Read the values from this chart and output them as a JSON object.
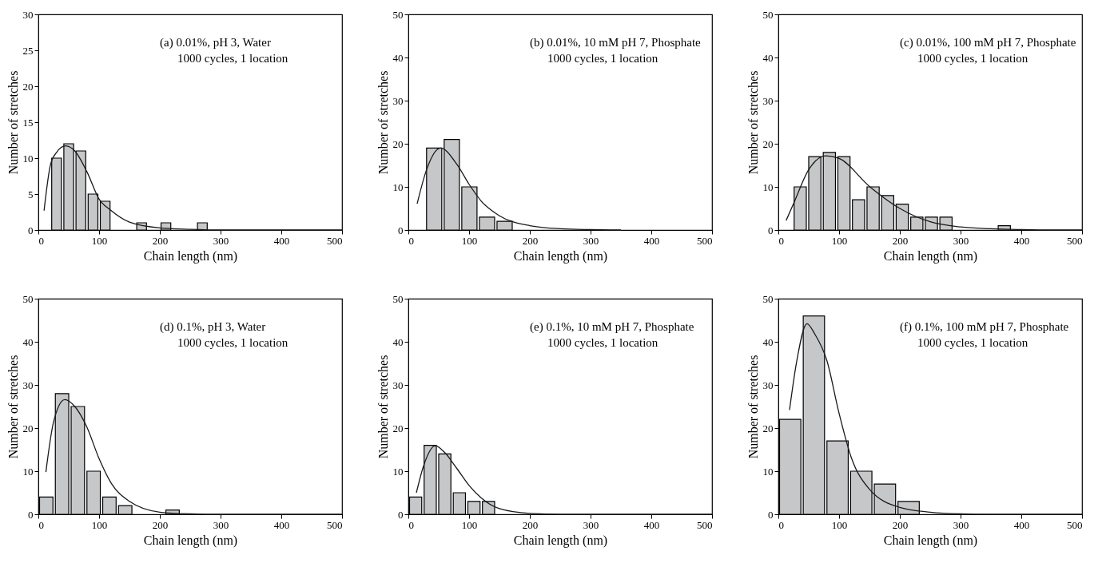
{
  "chart_data": [
    {
      "type": "histogram",
      "bins": [
        20,
        40,
        60,
        80,
        100,
        120,
        140,
        160,
        180,
        200,
        220,
        240,
        260,
        280
      ],
      "values": [
        10,
        12,
        11,
        5,
        4,
        0,
        0,
        1,
        0,
        1,
        0,
        0,
        1
      ],
      "color": "#c6c7c9",
      "series": [
        {
          "type": "line",
          "color": "#1a1a1a",
          "x": [
            9.4,
            20,
            30,
            45,
            60,
            80,
            100,
            120,
            150,
            200,
            250,
            300,
            400,
            500
          ],
          "values": [
            2.7,
            9.1,
            10.8,
            11.7,
            11.0,
            8.1,
            4.3,
            2.7,
            1.1,
            0.3,
            0.1,
            0,
            0,
            0
          ]
        }
      ],
      "xlabel": "Chain length (nm)",
      "ylabel": "Number of stretches",
      "xlim": [
        0,
        500
      ],
      "xticks": [
        0,
        100,
        200,
        300,
        400,
        500
      ],
      "ylim": [
        0,
        30
      ],
      "yticks": [
        0,
        5,
        10,
        15,
        20,
        25,
        30
      ],
      "grid": false,
      "annotations": [
        "(a)   0.01%, pH 3, Water",
        "1000 cycles, 1 location"
      ]
    },
    {
      "type": "histogram",
      "bins": [
        28,
        57,
        86,
        115,
        144,
        173
      ],
      "values": [
        19,
        21,
        10,
        3,
        2
      ],
      "color": "#c6c7c9",
      "series": [
        {
          "type": "line",
          "color": "#1a1a1a",
          "x": [
            14.5,
            30,
            53,
            80,
            100,
            120,
            150,
            200,
            250,
            300,
            350
          ],
          "values": [
            6.1,
            14,
            19.0,
            15.2,
            10.6,
            6.7,
            3.3,
            1.0,
            0.3,
            0.1,
            0
          ]
        }
      ],
      "xlabel": "Chain length (nm)",
      "ylabel": "Number of stretches",
      "xlim": [
        0,
        500
      ],
      "xticks": [
        0,
        100,
        200,
        300,
        400,
        500
      ],
      "ylim": [
        0,
        50
      ],
      "yticks": [
        0,
        10,
        20,
        30,
        40,
        50
      ],
      "grid": false,
      "annotations": [
        "(b)   0.01%, 10 mM pH 7, Phosphate",
        "1000 cycles, 1 location"
      ]
    },
    {
      "type": "histogram",
      "bins": [
        24,
        48,
        72,
        96,
        120,
        144,
        168,
        192,
        216,
        240,
        264,
        288,
        312,
        336,
        360,
        384
      ],
      "values": [
        10,
        17,
        18,
        17,
        7,
        10,
        8,
        6,
        3,
        3,
        3,
        0,
        0,
        0,
        1
      ],
      "color": "#c6c7c9",
      "series": [
        {
          "type": "line",
          "color": "#1a1a1a",
          "x": [
            12.8,
            25,
            50,
            77.6,
            100,
            150,
            200,
            250,
            300,
            350,
            400,
            450,
            500
          ],
          "values": [
            2.2,
            6.1,
            14,
            17.2,
            16.6,
            10.1,
            5.0,
            1.9,
            0.7,
            0.3,
            0.1,
            0,
            0
          ]
        }
      ],
      "xlabel": "Chain length (nm)",
      "ylabel": "Number of stretches",
      "xlim": [
        0,
        500
      ],
      "xticks": [
        0,
        100,
        200,
        300,
        400,
        500
      ],
      "ylim": [
        0,
        50
      ],
      "yticks": [
        0,
        10,
        20,
        30,
        40,
        50
      ],
      "grid": false,
      "annotations": [
        "(c)   0.01%, 100 mM pH 7, Phosphate",
        "1000 cycles, 1 location"
      ]
    },
    {
      "type": "histogram",
      "bins": [
        0,
        26,
        52,
        78,
        104,
        130,
        156,
        182,
        208,
        234
      ],
      "values": [
        4,
        28,
        25,
        10,
        4,
        2,
        0,
        0,
        1
      ],
      "color": "#c6c7c9",
      "series": [
        {
          "type": "line",
          "color": "#1a1a1a",
          "x": [
            12.4,
            25,
            43.5,
            60,
            80,
            100,
            120,
            150,
            200,
            250,
            300,
            500
          ],
          "values": [
            9.8,
            21.4,
            26.6,
            25.0,
            20.2,
            12.9,
            7.2,
            3.0,
            0.5,
            0.1,
            0,
            0
          ]
        }
      ],
      "xlabel": "Chain length (nm)",
      "ylabel": "Number of stretches",
      "xlim": [
        0,
        500
      ],
      "xticks": [
        0,
        100,
        200,
        300,
        400,
        500
      ],
      "ylim": [
        0,
        50
      ],
      "yticks": [
        0,
        10,
        20,
        30,
        40,
        50
      ],
      "grid": false,
      "annotations": [
        "(d)   0.1%, pH 3, Water",
        "1000 cycles, 1 location"
      ]
    },
    {
      "type": "histogram",
      "bins": [
        0,
        24,
        48,
        72,
        96,
        120,
        144
      ],
      "values": [
        4,
        16,
        14,
        5,
        3,
        3
      ],
      "color": "#c6c7c9",
      "series": [
        {
          "type": "line",
          "color": "#1a1a1a",
          "x": [
            13.2,
            25,
            44.4,
            60,
            80,
            100,
            120,
            150,
            200,
            250,
            500
          ],
          "values": [
            5.0,
            11.2,
            15.9,
            14.3,
            10.6,
            6.7,
            3.8,
            1.3,
            0.2,
            0,
            0
          ]
        }
      ],
      "xlabel": "Chain length (nm)",
      "ylabel": "Number of stretches",
      "xlim": [
        0,
        500
      ],
      "xticks": [
        0,
        100,
        200,
        300,
        400,
        500
      ],
      "ylim": [
        0,
        50
      ],
      "yticks": [
        0,
        10,
        20,
        30,
        40,
        50
      ],
      "grid": false,
      "annotations": [
        "(e)   0.1%, 10 mM pH 7, Phosphate",
        "1000 cycles, 1 location"
      ]
    },
    {
      "type": "histogram",
      "bins": [
        0,
        39,
        78,
        117,
        156,
        195,
        234
      ],
      "values": [
        22,
        46,
        17,
        10,
        7,
        3
      ],
      "color": "#c6c7c9",
      "series": [
        {
          "type": "line",
          "color": "#1a1a1a",
          "x": [
            18.4,
            30,
            47,
            60,
            80,
            100,
            120,
            150,
            200,
            250,
            300,
            350,
            500
          ],
          "values": [
            24.2,
            35.3,
            44.2,
            41.8,
            35.6,
            23.4,
            13.2,
            5.8,
            1.6,
            0.5,
            0.1,
            0,
            0
          ]
        }
      ],
      "xlabel": "Chain length (nm)",
      "ylabel": "Number of stretches",
      "xlim": [
        0,
        500
      ],
      "xticks": [
        0,
        100,
        200,
        300,
        400,
        500
      ],
      "ylim": [
        0,
        50
      ],
      "yticks": [
        0,
        10,
        20,
        30,
        40,
        50
      ],
      "grid": false,
      "annotations": [
        "(f) 0.1%, 100 mM pH 7, Phosphate",
        "1000 cycles, 1 location"
      ]
    }
  ]
}
